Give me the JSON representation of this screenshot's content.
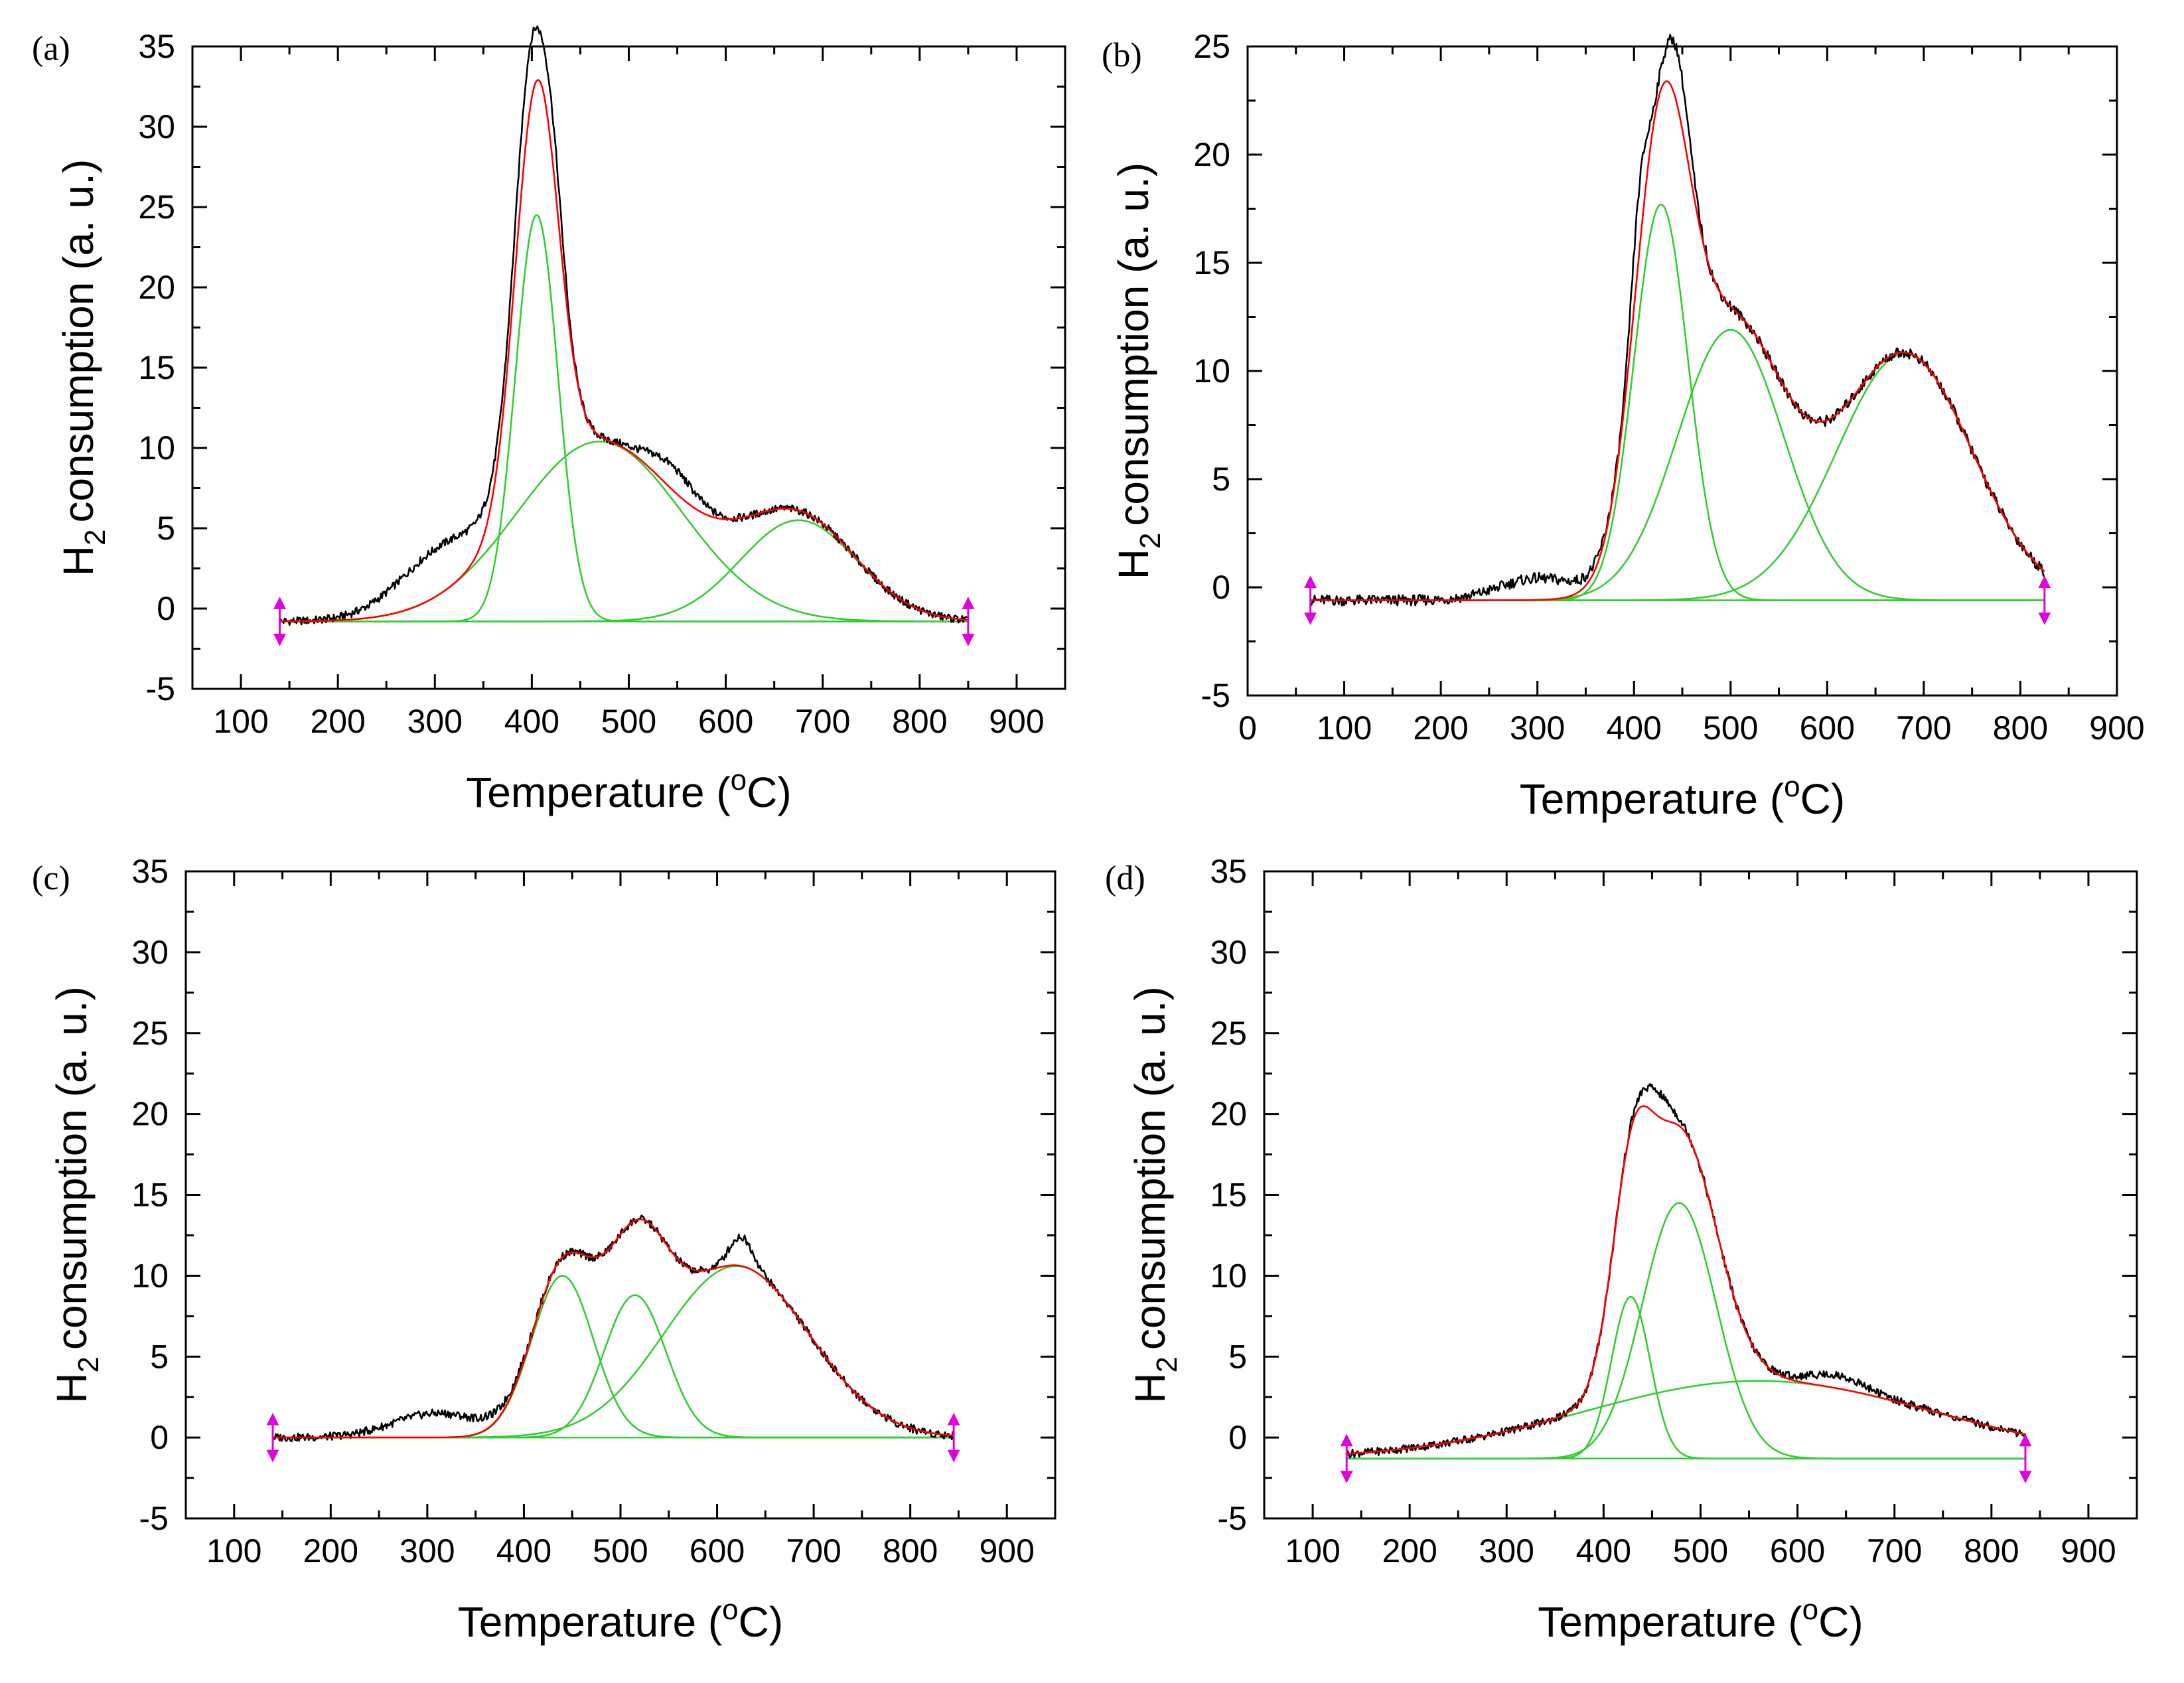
{
  "chart_data": [
    {
      "id": "a",
      "panel_label": "(a)",
      "type": "line",
      "xlabel_main": "Temperature (",
      "xlabel_sup": "o",
      "xlabel_end": "C)",
      "ylabel_main": "H",
      "ylabel_sub": "2",
      "ylabel_end": "consumption (a. u.)",
      "xlim": [
        50,
        950
      ],
      "ylim": [
        -5,
        35
      ],
      "xticks": [
        100,
        200,
        300,
        400,
        500,
        600,
        700,
        800,
        900
      ],
      "yticks": [
        -5,
        0,
        5,
        10,
        15,
        20,
        25,
        30,
        35
      ],
      "x_range": [
        140,
        850
      ],
      "measured_shoulder": {
        "center": 305,
        "height": 3.0,
        "width": 45
      },
      "baseline": [
        -0.8,
        -0.8
      ],
      "peaks": [
        {
          "name": "peak 1",
          "center": 405,
          "height": 25.3,
          "width": 22
        },
        {
          "name": "peak 2",
          "center": 470,
          "height": 11.2,
          "width": 85
        },
        {
          "name": "peak 3",
          "center": 675,
          "height": 6.3,
          "width": 60
        }
      ],
      "measured_extra": [
        {
          "center": 395,
          "height": 3.5,
          "width": 12
        },
        {
          "center": 422,
          "height": 2.5,
          "width": 10
        },
        {
          "center": 545,
          "height": 1.5,
          "width": 25
        }
      ],
      "colors": {
        "measured": "#000000",
        "fit": "#ff0000",
        "components": "#32cd32",
        "markers": "#e000e0"
      }
    },
    {
      "id": "b",
      "panel_label": "(b)",
      "type": "line",
      "xlabel_main": "Temperature (",
      "xlabel_sup": "o",
      "xlabel_end": "C)",
      "ylabel_main": "H",
      "ylabel_sub": "2",
      "ylabel_end": "consumption (a. u.)",
      "xlim": [
        0,
        900
      ],
      "ylim": [
        -5,
        25
      ],
      "xticks": [
        0,
        100,
        200,
        300,
        400,
        500,
        600,
        700,
        800,
        900
      ],
      "yticks": [
        -5,
        0,
        5,
        10,
        15,
        20,
        25
      ],
      "x_range": [
        65,
        825
      ],
      "measured_shoulder": {
        "center": 300,
        "height": 1.0,
        "width": 40
      },
      "baseline": [
        -0.6,
        -0.6
      ],
      "peaks": [
        {
          "name": "peak 1",
          "center": 428,
          "height": 18.3,
          "width": 28
        },
        {
          "name": "peak 2",
          "center": 500,
          "height": 12.5,
          "width": 55
        },
        {
          "name": "peak 3",
          "center": 680,
          "height": 11.4,
          "width": 70
        }
      ],
      "measured_extra": [
        {
          "center": 405,
          "height": 3.0,
          "width": 8
        },
        {
          "center": 445,
          "height": 2.5,
          "width": 12
        }
      ],
      "colors": {
        "measured": "#000000",
        "fit": "#ff0000",
        "components": "#32cd32",
        "markers": "#e000e0"
      }
    },
    {
      "id": "c",
      "panel_label": "(c)",
      "type": "line",
      "xlabel_main": "Temperature (",
      "xlabel_sup": "o",
      "xlabel_end": "C)",
      "ylabel_main": "H",
      "ylabel_sub": "2",
      "ylabel_end": "consumption (a. u.)",
      "xlim": [
        50,
        950
      ],
      "ylim": [
        -5,
        35
      ],
      "xticks": [
        100,
        200,
        300,
        400,
        500,
        600,
        700,
        800,
        900
      ],
      "yticks": [
        -5,
        0,
        5,
        10,
        15,
        20,
        25,
        30,
        35
      ],
      "x_range": [
        140,
        845
      ],
      "measured_shoulder": {
        "center": 310,
        "height": 1.5,
        "width": 45
      },
      "baseline": [
        0.0,
        0.0
      ],
      "peaks": [
        {
          "name": "peak 1",
          "center": 440,
          "height": 10.0,
          "width": 32
        },
        {
          "name": "peak 2",
          "center": 515,
          "height": 8.8,
          "width": 32
        },
        {
          "name": "peak 3",
          "center": 620,
          "height": 10.6,
          "width": 75
        }
      ],
      "measured_extra": [
        {
          "center": 625,
          "height": 1.8,
          "width": 12
        }
      ],
      "colors": {
        "measured": "#000000",
        "fit": "#ff0000",
        "components": "#32cd32",
        "markers": "#e000e0"
      }
    },
    {
      "id": "d",
      "panel_label": "(d)",
      "type": "line",
      "xlabel_main": "Temperature (",
      "xlabel_sup": "o",
      "xlabel_end": "C)",
      "ylabel_main": "H",
      "ylabel_sub": "2",
      "ylabel_end": "consumption (a. u.)",
      "xlim": [
        50,
        950
      ],
      "ylim": [
        -5,
        35
      ],
      "xticks": [
        100,
        200,
        300,
        400,
        500,
        600,
        700,
        800,
        900
      ],
      "yticks": [
        -5,
        0,
        5,
        10,
        15,
        20,
        25,
        30,
        35
      ],
      "x_range": [
        135,
        835
      ],
      "measured_shoulder": {
        "center": 640,
        "height": 0.8,
        "width": 30
      },
      "baseline": [
        -1.3,
        -1.3
      ],
      "peaks": [
        {
          "name": "peak 1",
          "center": 428,
          "height": 10.0,
          "width": 20
        },
        {
          "name": "peak 2",
          "center": 478,
          "height": 15.8,
          "width": 38
        },
        {
          "name": "peak 3",
          "center": 560,
          "height": 4.8,
          "width": 180
        }
      ],
      "measured_extra": [
        {
          "center": 455,
          "height": 1.5,
          "width": 15
        }
      ],
      "colors": {
        "measured": "#000000",
        "fit": "#ff0000",
        "components": "#32cd32",
        "markers": "#e000e0"
      }
    }
  ]
}
